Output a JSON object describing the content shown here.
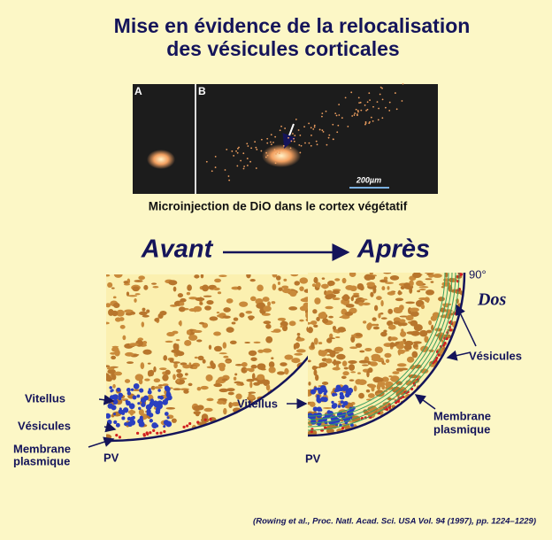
{
  "title": [
    "Mise en évidence de la relocalisation",
    "des vésicules corticales"
  ],
  "micrograph": {
    "panel_a": "A",
    "panel_b": "B",
    "scale_bar": "200µm"
  },
  "caption": "Microinjection de DiO dans le cortex végétatif",
  "stages": {
    "before": "Avant",
    "after": "Après"
  },
  "before_panel": {
    "vitellus": "Vitellus",
    "vesicles": "Vésicules",
    "membrane": [
      "Membrane",
      "plasmique"
    ],
    "pole": "PV"
  },
  "after_panel": {
    "angle": "90°",
    "dorsal": "Dos",
    "vesicles": "Vésicules",
    "vitellus": "Vitellus",
    "membrane": [
      "Membrane",
      "plasmique"
    ],
    "pole": "PV"
  },
  "citation": "(Rowing et al., Proc. Natl. Acad. Sci. USA Vol. 94 (1997), pp. 1224–1229)"
}
